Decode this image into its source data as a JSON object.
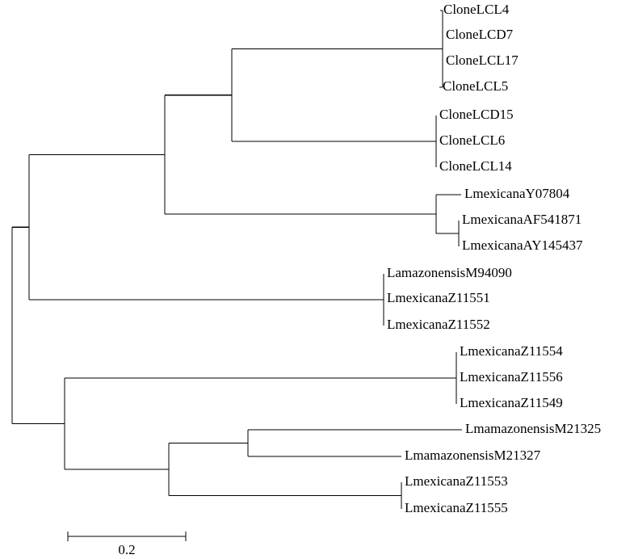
{
  "tree": {
    "leaves": [
      "CloneLCL4",
      "CloneLCD7",
      "CloneLCL17",
      "CloneLCL5",
      "CloneLCD15",
      "CloneLCL6",
      "CloneLCL14",
      "LmexicanaY07804",
      "LmexicanaAF541871",
      "LmexicanaAY145437",
      "LamazonensisM94090",
      "LmexicanaZ11551",
      "LmexicanaZ11552",
      "LmexicanaZ11554",
      "LmexicanaZ11556",
      "LmexicanaZ11549",
      "LmamazonensisM21325",
      "LmamazonensisM21327",
      "LmexicanaZ11553",
      "LmexicanaZ11555"
    ],
    "scale_bar_label": "0.2",
    "line_color": "#000000"
  }
}
